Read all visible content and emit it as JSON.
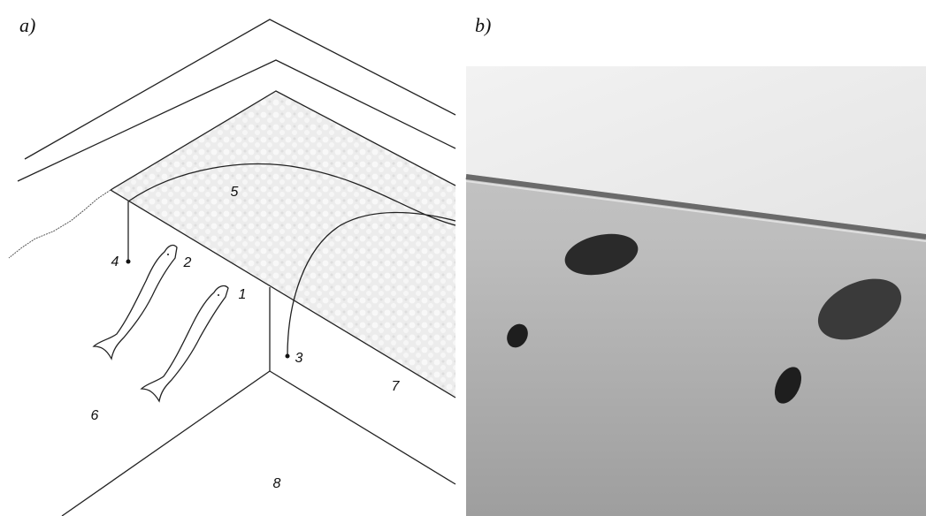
{
  "panels": [
    {
      "label": "a)",
      "callouts": [
        "1",
        "2",
        "3",
        "4",
        "5",
        "6",
        "7",
        "8"
      ]
    },
    {
      "label": "b)"
    }
  ]
}
